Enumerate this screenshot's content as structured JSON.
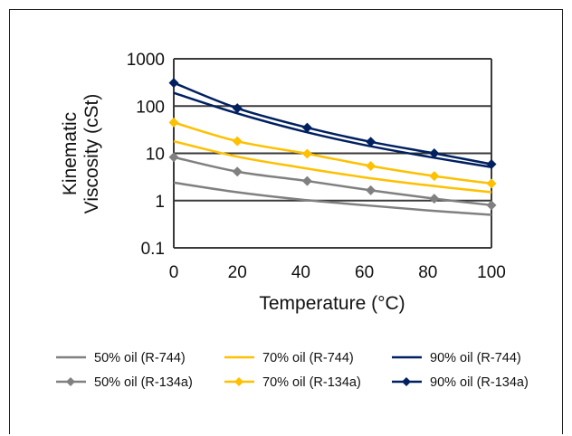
{
  "chart_data": {
    "type": "line",
    "title": "",
    "xlabel": "Temperature (°C)",
    "ylabel_lines": [
      "Kinematic",
      "Viscosity (cSt)"
    ],
    "xlim": [
      0,
      100
    ],
    "ylim": [
      0.1,
      1000
    ],
    "yscale": "log",
    "x_ticks": [
      "0",
      "20",
      "40",
      "60",
      "80",
      "100"
    ],
    "y_ticks": [
      "0.1",
      "1",
      "10",
      "100",
      "1000"
    ],
    "grid": "horizontal",
    "legend_position": "bottom",
    "series": [
      {
        "name": "50% oil (R-744)",
        "color": "#808080",
        "marker": "none",
        "x": [
          0,
          20,
          40,
          60,
          80,
          100
        ],
        "y": [
          2.4,
          1.5,
          1.05,
          0.8,
          0.62,
          0.5
        ]
      },
      {
        "name": "70% oil (R-744)",
        "color": "#FFC000",
        "marker": "none",
        "x": [
          0,
          20,
          40,
          60,
          80,
          100
        ],
        "y": [
          18,
          8.5,
          5,
          3.1,
          2.1,
          1.5
        ]
      },
      {
        "name": "90% oil (R-744)",
        "color": "#002060",
        "marker": "none",
        "x": [
          0,
          20,
          40,
          60,
          80,
          100
        ],
        "y": [
          190,
          70,
          30,
          15,
          8.5,
          5.1
        ]
      },
      {
        "name": "50% oil (R-134a)",
        "color": "#808080",
        "marker": "diamond",
        "x": [
          0,
          20,
          42,
          62,
          82,
          100
        ],
        "y": [
          8.3,
          4.1,
          2.6,
          1.65,
          1.1,
          0.8
        ]
      },
      {
        "name": "70% oil (R-134a)",
        "color": "#FFC000",
        "marker": "diamond",
        "x": [
          0,
          20,
          42,
          62,
          82,
          100
        ],
        "y": [
          45,
          18,
          9.8,
          5.4,
          3.3,
          2.3
        ]
      },
      {
        "name": "90% oil (R-134a)",
        "color": "#002060",
        "marker": "diamond",
        "x": [
          0,
          20,
          42,
          62,
          82,
          100
        ],
        "y": [
          310,
          90,
          35,
          17.5,
          10,
          5.9
        ]
      }
    ]
  }
}
